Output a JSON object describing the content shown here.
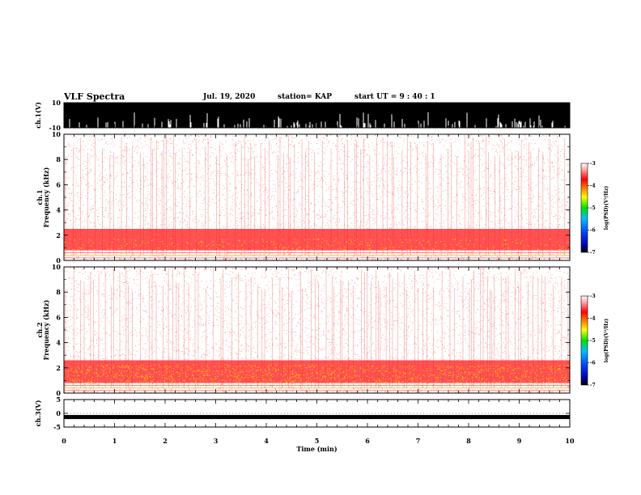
{
  "header": {
    "title": "VLF Spectra",
    "date": "Jul. 19, 2020",
    "station": "station= KAP",
    "start": "start UT = 9 : 40 : 1"
  },
  "chart_data": [
    {
      "type": "line",
      "name": "ch1-waveform",
      "ylabel": "ch.1(V)",
      "ylim": [
        -10,
        10
      ],
      "yticks": [
        "10",
        "-10"
      ],
      "xlim": [
        0,
        10
      ],
      "saturated": true
    },
    {
      "type": "heatmap",
      "name": "ch1-spectrogram",
      "ylabel": "ch.1",
      "ylabel2": "Frequency (kHz)",
      "ylim": [
        0,
        10
      ],
      "yticks": [
        "0",
        "2",
        "4",
        "6",
        "8",
        "10"
      ],
      "xlim": [
        0,
        10
      ],
      "colorbar": {
        "label": "log(PSD)(V²/Hz)",
        "range": [
          -7,
          -3
        ],
        "ticks": [
          "-3",
          "-4",
          "-5",
          "-6",
          "-7"
        ]
      },
      "dense_band_khz": [
        0.8,
        2.5
      ]
    },
    {
      "type": "heatmap",
      "name": "ch2-spectrogram",
      "ylabel": "ch.2",
      "ylabel2": "Frequency (kHz)",
      "ylim": [
        0,
        10
      ],
      "yticks": [
        "0",
        "2",
        "4",
        "6",
        "8",
        "10"
      ],
      "xlim": [
        0,
        10
      ],
      "colorbar": {
        "label": "log(PSD)(V²/Hz)",
        "range": [
          -7,
          -3
        ],
        "ticks": [
          "-3",
          "-4",
          "-5",
          "-6",
          "-7"
        ]
      },
      "dense_band_khz": [
        0.8,
        2.6
      ]
    },
    {
      "type": "line",
      "name": "ch3-waveform",
      "ylabel": "ch.3(V)",
      "ylim": [
        -5,
        5
      ],
      "yticks": [
        "5",
        "0",
        "-5"
      ],
      "xlim": [
        0,
        10
      ],
      "xticks": [
        "0",
        "1",
        "2",
        "3",
        "4",
        "5",
        "6",
        "7",
        "8",
        "9",
        "10"
      ],
      "xlabel": "Time (min)",
      "level_v": -1.5
    }
  ]
}
